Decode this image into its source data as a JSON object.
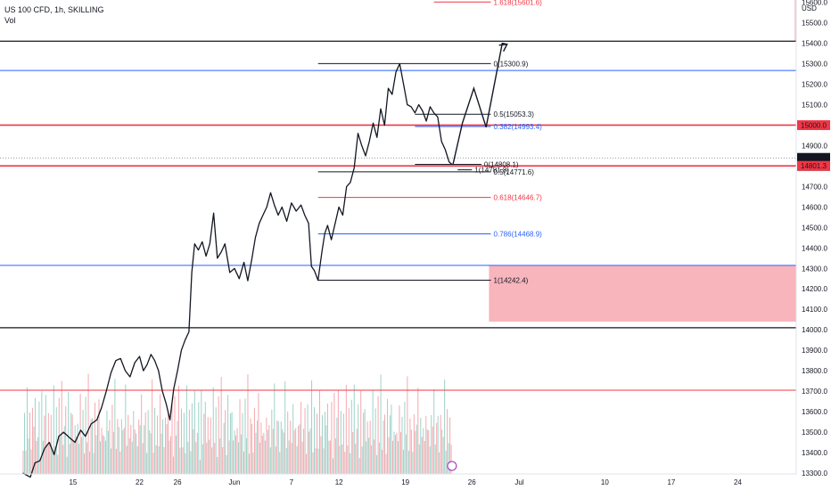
{
  "header": {
    "symbol": "US 100 CFD, 1h, SKILLING",
    "volume_label": "Vol"
  },
  "chart_data": {
    "type": "candlestick",
    "price_currency": "USD",
    "ylim": [
      13280,
      15720
    ],
    "y_ticks": [
      13300,
      13400,
      13500,
      13600,
      13700,
      13800,
      13900,
      14000,
      14100,
      14200,
      14300,
      14400,
      14500,
      14600,
      14700,
      14800,
      14900,
      15100,
      15200,
      15300,
      15400,
      15500,
      15600
    ],
    "x_ticks": [
      {
        "label": "15",
        "d": 15
      },
      {
        "label": "22",
        "d": 22
      },
      {
        "label": "26",
        "d": 26
      },
      {
        "label": "Jun",
        "d": 32
      },
      {
        "label": "7",
        "d": 38
      },
      {
        "label": "12",
        "d": 43
      },
      {
        "label": "19",
        "d": 50
      },
      {
        "label": "26",
        "d": 57
      },
      {
        "label": "Jul",
        "d": 62
      },
      {
        "label": "10",
        "d": 71
      },
      {
        "label": "17",
        "d": 78
      },
      {
        "label": "24",
        "d": 85
      }
    ],
    "x_ticks_note": "d = days counted from 30 April",
    "price_path": [
      [
        9.7,
        13300
      ],
      [
        10.5,
        13280
      ],
      [
        11,
        13350
      ],
      [
        11.5,
        13360
      ],
      [
        12,
        13420
      ],
      [
        12.5,
        13450
      ],
      [
        13,
        13390
      ],
      [
        13.5,
        13480
      ],
      [
        14,
        13500
      ],
      [
        14.7,
        13470
      ],
      [
        15.2,
        13450
      ],
      [
        15.8,
        13510
      ],
      [
        16.3,
        13480
      ],
      [
        16.9,
        13540
      ],
      [
        17.5,
        13560
      ],
      [
        18,
        13620
      ],
      [
        18.5,
        13700
      ],
      [
        19,
        13790
      ],
      [
        19.5,
        13850
      ],
      [
        20,
        13860
      ],
      [
        20.5,
        13800
      ],
      [
        21,
        13770
      ],
      [
        21.5,
        13840
      ],
      [
        22,
        13870
      ],
      [
        22.4,
        13800
      ],
      [
        22.8,
        13830
      ],
      [
        23.2,
        13880
      ],
      [
        23.6,
        13850
      ],
      [
        24,
        13800
      ],
      [
        24.4,
        13700
      ],
      [
        24.8,
        13640
      ],
      [
        25.2,
        13560
      ],
      [
        25.6,
        13710
      ],
      [
        26,
        13800
      ],
      [
        26.4,
        13900
      ],
      [
        26.8,
        13950
      ],
      [
        27.2,
        13990
      ],
      [
        27.5,
        14280
      ],
      [
        27.8,
        14420
      ],
      [
        28.2,
        14390
      ],
      [
        28.6,
        14430
      ],
      [
        29,
        14360
      ],
      [
        29.4,
        14420
      ],
      [
        29.8,
        14570
      ],
      [
        30.2,
        14350
      ],
      [
        30.6,
        14380
      ],
      [
        31,
        14420
      ],
      [
        31.5,
        14280
      ],
      [
        32,
        14300
      ],
      [
        32.5,
        14250
      ],
      [
        33,
        14330
      ],
      [
        33.4,
        14240
      ],
      [
        33.8,
        14340
      ],
      [
        34.2,
        14450
      ],
      [
        34.6,
        14520
      ],
      [
        35,
        14560
      ],
      [
        35.4,
        14600
      ],
      [
        35.8,
        14670
      ],
      [
        36.2,
        14610
      ],
      [
        36.6,
        14560
      ],
      [
        37,
        14600
      ],
      [
        37.5,
        14530
      ],
      [
        38,
        14620
      ],
      [
        38.5,
        14580
      ],
      [
        39,
        14610
      ],
      [
        39.4,
        14560
      ],
      [
        39.8,
        14520
      ],
      [
        40.1,
        14310
      ],
      [
        40.4,
        14290
      ],
      [
        40.8,
        14242
      ],
      [
        41.2,
        14380
      ],
      [
        41.5,
        14470
      ],
      [
        41.8,
        14510
      ],
      [
        42.2,
        14440
      ],
      [
        42.6,
        14520
      ],
      [
        43,
        14600
      ],
      [
        43.4,
        14560
      ],
      [
        43.8,
        14700
      ],
      [
        44.2,
        14720
      ],
      [
        44.6,
        14790
      ],
      [
        45,
        14960
      ],
      [
        45.4,
        14900
      ],
      [
        45.8,
        14850
      ],
      [
        46.2,
        14920
      ],
      [
        46.6,
        15010
      ],
      [
        47,
        14940
      ],
      [
        47.4,
        15080
      ],
      [
        47.8,
        15000
      ],
      [
        48.2,
        15180
      ],
      [
        48.6,
        15150
      ],
      [
        49,
        15260
      ],
      [
        49.4,
        15300
      ],
      [
        49.8,
        15200
      ],
      [
        50.2,
        15100
      ],
      [
        50.6,
        15090
      ],
      [
        51,
        15060
      ],
      [
        51.4,
        15100
      ],
      [
        51.8,
        15070
      ],
      [
        52.2,
        15020
      ],
      [
        52.6,
        15090
      ],
      [
        53,
        15060
      ],
      [
        53.4,
        15040
      ],
      [
        53.8,
        14920
      ],
      [
        54.2,
        14880
      ],
      [
        54.6,
        14820
      ],
      [
        54.9,
        14808
      ]
    ],
    "volume_profile": [
      0.35,
      0.55,
      0.3,
      0.8,
      0.4,
      0.6,
      0.25,
      0.7,
      0.45,
      0.9,
      0.3,
      0.5,
      0.65,
      0.2,
      0.75,
      0.4,
      0.55,
      0.85,
      0.3,
      0.6
    ],
    "horizontal_levels": [
      {
        "price": 15410,
        "color": "#131722",
        "width": 1.2
      },
      {
        "price": 15267,
        "color": "#2962ff",
        "width": 1
      },
      {
        "price": 15000,
        "color": "#f23645",
        "width": 1.6
      },
      {
        "price": 14801,
        "color": "#f23645",
        "width": 1.6
      },
      {
        "price": 14315,
        "color": "#2962ff",
        "width": 1
      },
      {
        "price": 14010,
        "color": "#131722",
        "width": 1.2
      },
      {
        "price": 13705,
        "color": "#f23645",
        "width": 1
      }
    ],
    "current_price_line": {
      "price": 14840,
      "style": "dotted"
    },
    "price_badges": [
      {
        "price": 15000,
        "text": "15000.0",
        "bg": "#f23645",
        "fg": "#ffffff"
      },
      {
        "price": 14840,
        "text": "14840.0",
        "bg": "#131722",
        "fg": "#ffffff",
        "sub": "30:11"
      },
      {
        "price": 14801,
        "text": "14801.3",
        "bg": "#f23645",
        "fg": "#ffffff"
      }
    ],
    "fib_levels": [
      {
        "price": 15601.6,
        "label": "1.618(15601.6)",
        "color": "#f23645",
        "d1": 53,
        "d2": 59
      },
      {
        "price": 15300.9,
        "label": "0(15300.9)",
        "color": "#131722",
        "d1": 40.8,
        "d2": 59
      },
      {
        "price": 15053.3,
        "label": "0.5(15053.3)",
        "color": "#131722",
        "d1": 51,
        "d2": 59
      },
      {
        "price": 14993.4,
        "label": "0.382(14993.4)",
        "color": "#2962ff",
        "d1": 51,
        "d2": 59
      },
      {
        "price": 14808.1,
        "label": "0(14808.1)",
        "color": "#131722",
        "d1": 51,
        "d2": 58
      },
      {
        "price": 14781.8,
        "label": "1(14781.8)",
        "color": "#131722",
        "d1": 55.5,
        "d2": 57
      },
      {
        "price": 14771.6,
        "label": "0.5(14771.6)",
        "color": "#131722",
        "d1": 40.8,
        "d2": 59
      },
      {
        "price": 14646.7,
        "label": "0.618(14646.7)",
        "color": "#f23645",
        "d1": 40.8,
        "d2": 59
      },
      {
        "price": 14468.9,
        "label": "0.786(14468.9)",
        "color": "#2962ff",
        "d1": 40.8,
        "d2": 59
      },
      {
        "price": 14242.4,
        "label": "1(14242.4)",
        "color": "#131722",
        "d1": 40.8,
        "d2": 59
      }
    ],
    "zones": [
      {
        "d1": 58.8,
        "d2": 100,
        "p1": 14040,
        "p2": 14315,
        "color": "#f7a8b0"
      },
      {
        "d1": 91,
        "d2": 100,
        "p1": 15410,
        "p2": 15720,
        "color": "#f7a8b0"
      }
    ],
    "projection_path": [
      [
        55,
        14808
      ],
      [
        56,
        15010
      ],
      [
        57.2,
        15180
      ],
      [
        58.5,
        14990
      ],
      [
        60.2,
        15400
      ],
      [
        60.7,
        15395
      ]
    ]
  }
}
